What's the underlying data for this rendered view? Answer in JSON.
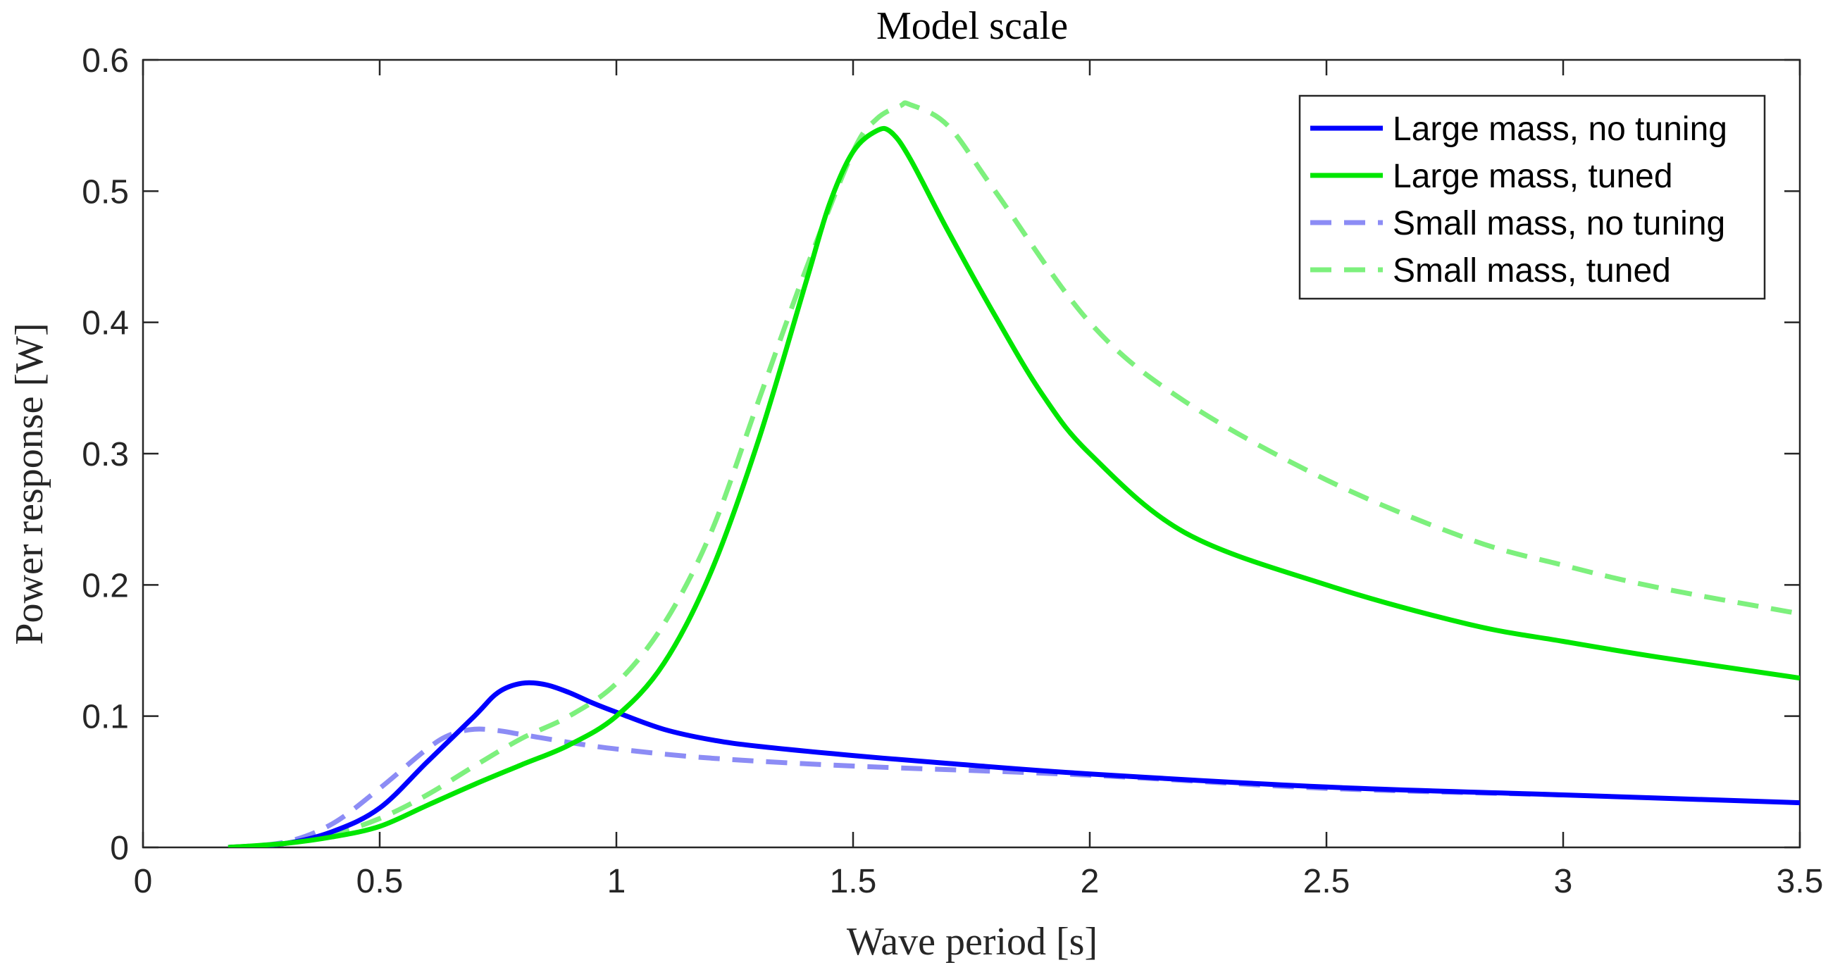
{
  "chart_data": {
    "type": "line",
    "title": "Model scale",
    "xlabel": "Wave period [s]",
    "ylabel": "Power response [W]",
    "xlim": [
      0,
      3.5
    ],
    "ylim": [
      0,
      0.6
    ],
    "xticks": [
      0,
      0.5,
      1,
      1.5,
      2,
      2.5,
      3,
      3.5
    ],
    "xtick_labels": [
      "0",
      "0.5",
      "1",
      "1.5",
      "2",
      "2.5",
      "3",
      "3.5"
    ],
    "yticks": [
      0,
      0.1,
      0.2,
      0.3,
      0.4,
      0.5,
      0.6
    ],
    "ytick_labels": [
      "0",
      "0.1",
      "0.2",
      "0.3",
      "0.4",
      "0.5",
      "0.6"
    ],
    "grid": false,
    "legend_position": "top-right",
    "series": [
      {
        "name": "Large mass, no tuning",
        "color": "#0000ff",
        "style": "solid",
        "x": [
          0.18,
          0.3,
          0.4,
          0.5,
          0.6,
          0.7,
          0.75,
          0.8,
          0.85,
          0.9,
          0.95,
          1.0,
          1.1,
          1.2,
          1.3,
          1.5,
          1.7,
          2.0,
          2.5,
          3.0,
          3.5
        ],
        "y": [
          0.0,
          0.003,
          0.012,
          0.03,
          0.065,
          0.1,
          0.118,
          0.125,
          0.124,
          0.118,
          0.11,
          0.103,
          0.09,
          0.082,
          0.077,
          0.07,
          0.064,
          0.056,
          0.046,
          0.04,
          0.034
        ]
      },
      {
        "name": "Large mass, tuned",
        "color": "#00e600",
        "style": "solid",
        "x": [
          0.18,
          0.3,
          0.4,
          0.5,
          0.6,
          0.7,
          0.8,
          0.9,
          1.0,
          1.1,
          1.2,
          1.3,
          1.4,
          1.45,
          1.5,
          1.55,
          1.58,
          1.62,
          1.7,
          1.8,
          1.9,
          2.0,
          2.2,
          2.5,
          2.8,
          3.0,
          3.2,
          3.5
        ],
        "y": [
          0.0,
          0.003,
          0.008,
          0.016,
          0.032,
          0.048,
          0.063,
          0.078,
          0.1,
          0.14,
          0.21,
          0.31,
          0.43,
          0.49,
          0.53,
          0.546,
          0.545,
          0.525,
          0.47,
          0.405,
          0.345,
          0.3,
          0.24,
          0.2,
          0.17,
          0.157,
          0.145,
          0.129
        ]
      },
      {
        "name": "Small mass, no tuning",
        "color": "#8c8cf5",
        "style": "dashed",
        "x": [
          0.18,
          0.3,
          0.4,
          0.5,
          0.6,
          0.65,
          0.7,
          0.75,
          0.8,
          0.9,
          1.0,
          1.2,
          1.5,
          2.0,
          2.5,
          3.0
        ],
        "y": [
          0.0,
          0.004,
          0.018,
          0.045,
          0.075,
          0.086,
          0.09,
          0.089,
          0.086,
          0.08,
          0.075,
          0.068,
          0.062,
          0.055,
          0.045,
          0.04
        ]
      },
      {
        "name": "Small mass, tuned",
        "color": "#7df07d",
        "style": "dashed",
        "x": [
          0.18,
          0.3,
          0.4,
          0.5,
          0.6,
          0.7,
          0.8,
          0.9,
          1.0,
          1.1,
          1.2,
          1.3,
          1.4,
          1.5,
          1.55,
          1.6,
          1.62,
          1.7,
          1.8,
          2.0,
          2.2,
          2.5,
          2.8,
          3.0,
          3.2,
          3.5
        ],
        "y": [
          0.0,
          0.003,
          0.01,
          0.022,
          0.04,
          0.062,
          0.083,
          0.1,
          0.125,
          0.17,
          0.24,
          0.34,
          0.44,
          0.53,
          0.555,
          0.565,
          0.566,
          0.55,
          0.5,
          0.4,
          0.34,
          0.28,
          0.235,
          0.215,
          0.198,
          0.178
        ]
      }
    ]
  }
}
